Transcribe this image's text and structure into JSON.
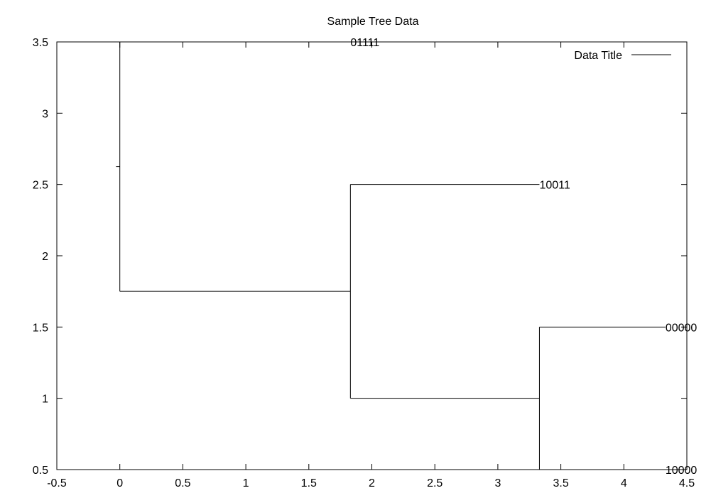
{
  "chart_data": {
    "type": "line",
    "title": "Sample Tree Data",
    "xlabel": "",
    "ylabel": "",
    "xlim": [
      -0.5,
      4.5
    ],
    "ylim": [
      0.5,
      3.5
    ],
    "x_ticks": [
      "-0.5",
      "0",
      "0.5",
      "1",
      "1.5",
      "2",
      "2.5",
      "3",
      "3.5",
      "4",
      "4.5"
    ],
    "y_ticks": [
      "0.5",
      "1",
      "1.5",
      "2",
      "2.5",
      "3",
      "3.5"
    ],
    "grid": false,
    "legend": {
      "position": "top-right",
      "entries": [
        "Data Title"
      ]
    },
    "series": [
      {
        "name": "Data Title",
        "color": "#000000",
        "segments": [
          {
            "from": [
              -0.03,
              2.625
            ],
            "to": [
              0,
              2.625
            ]
          },
          {
            "from": [
              0,
              1.75
            ],
            "to": [
              0,
              3.5
            ]
          },
          {
            "from": [
              0,
              1.75
            ],
            "to": [
              1.83,
              1.75
            ]
          },
          {
            "from": [
              1.83,
              3.5
            ],
            "to": [
              2.1,
              3.5
            ]
          },
          {
            "from": [
              1.83,
              1.0
            ],
            "to": [
              1.83,
              2.5
            ]
          },
          {
            "from": [
              1.83,
              2.5
            ],
            "to": [
              3.33,
              2.5
            ]
          },
          {
            "from": [
              1.83,
              1.0
            ],
            "to": [
              3.33,
              1.0
            ]
          },
          {
            "from": [
              3.33,
              0.5
            ],
            "to": [
              3.33,
              1.5
            ]
          },
          {
            "from": [
              3.33,
              1.5
            ],
            "to": [
              4.33,
              1.5
            ]
          },
          {
            "from": [
              3.33,
              0.5
            ],
            "to": [
              4.33,
              0.5
            ]
          }
        ]
      }
    ],
    "annotations": [
      {
        "text": "01111",
        "x": 1.83,
        "y": 3.5
      },
      {
        "text": "10011",
        "x": 3.33,
        "y": 2.5
      },
      {
        "text": "00000",
        "x": 4.33,
        "y": 1.5
      },
      {
        "text": "10000",
        "x": 4.33,
        "y": 0.5
      }
    ]
  }
}
